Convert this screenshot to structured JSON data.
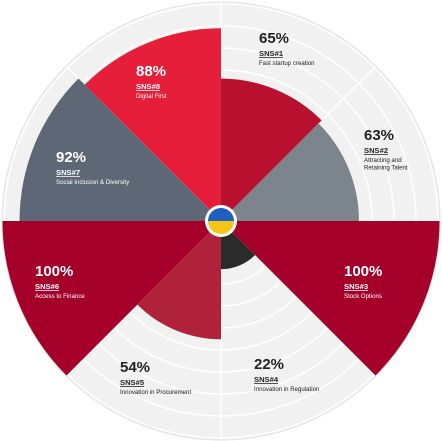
{
  "chart_data": {
    "type": "polar-area",
    "max_value": 100,
    "series": [
      {
        "code": "SNS#1",
        "label": "Fast startup creation",
        "value": 65,
        "value_text": "65%",
        "color": "#b8102f",
        "text_color": "#222222"
      },
      {
        "code": "SNS#2",
        "label": [
          "Attracting and",
          "Retaining Talent"
        ],
        "value": 63,
        "value_text": "63%",
        "color": "#7d858c",
        "text_color": "#222222"
      },
      {
        "code": "SNS#3",
        "label": "Stock Options",
        "value": 100,
        "value_text": "100%",
        "color": "#a4002a",
        "text_color": "#ffffff"
      },
      {
        "code": "SNS#4",
        "label": "Innovation in Regulation",
        "value": 22,
        "value_text": "22%",
        "color": "#2b2b2b",
        "text_color": "#222222"
      },
      {
        "code": "SNS#5",
        "label": "Innovation in Procurement",
        "value": 54,
        "value_text": "54%",
        "color": "#b0213a",
        "text_color": "#222222"
      },
      {
        "code": "SNS#6",
        "label": "Access to Finance",
        "value": 100,
        "value_text": "100%",
        "color": "#a4002a",
        "text_color": "#ffffff"
      },
      {
        "code": "SNS#7",
        "label": "Social Inclusion & Diversity",
        "value": 92,
        "value_text": "92%",
        "color": "#5d6775",
        "text_color": "#ffffff"
      },
      {
        "code": "SNS#8",
        "label": "Digital First",
        "value": 88,
        "value_text": "88%",
        "color": "#e51e3a",
        "text_color": "#ffffff"
      }
    ],
    "center_flag": {
      "top_color": "#1f5fbf",
      "bottom_color": "#f5c518"
    },
    "background_color": "#f1f1f1",
    "grid": true
  }
}
